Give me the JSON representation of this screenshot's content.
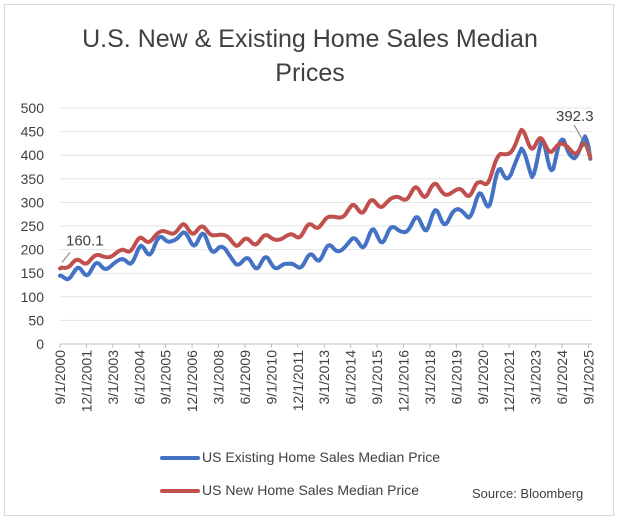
{
  "chart_data": {
    "type": "line",
    "title_line1": "U.S. New & Existing Home Sales Median",
    "title_line2": "Prices",
    "ylim": [
      0,
      500
    ],
    "y_ticks": [
      "500",
      "450",
      "400",
      "350",
      "300",
      "250",
      "200",
      "150",
      "100",
      "50",
      "0"
    ],
    "x_range": [
      2000.667,
      2025.833
    ],
    "x_ticks": [
      {
        "label": "9/1/2000",
        "x": 2000.667
      },
      {
        "label": "12/1/2001",
        "x": 2001.917
      },
      {
        "label": "3/1/2003",
        "x": 2003.167
      },
      {
        "label": "6/1/2004",
        "x": 2004.417
      },
      {
        "label": "9/1/2005",
        "x": 2005.667
      },
      {
        "label": "12/1/2006",
        "x": 2006.917
      },
      {
        "label": "3/1/2008",
        "x": 2008.167
      },
      {
        "label": "6/1/2009",
        "x": 2009.417
      },
      {
        "label": "9/1/2010",
        "x": 2010.667
      },
      {
        "label": "12/1/2011",
        "x": 2011.917
      },
      {
        "label": "3/1/2013",
        "x": 2013.167
      },
      {
        "label": "6/1/2014",
        "x": 2014.417
      },
      {
        "label": "9/1/2015",
        "x": 2015.667
      },
      {
        "label": "12/1/2016",
        "x": 2016.917
      },
      {
        "label": "3/1/2018",
        "x": 2018.167
      },
      {
        "label": "6/1/2019",
        "x": 2019.417
      },
      {
        "label": "9/1/2020",
        "x": 2020.667
      },
      {
        "label": "12/1/2021",
        "x": 2021.917
      },
      {
        "label": "3/1/2023",
        "x": 2023.167
      },
      {
        "label": "6/1/2024",
        "x": 2024.417
      },
      {
        "label": "9/1/2025",
        "x": 2025.667
      }
    ],
    "series": [
      {
        "name": "US Existing Home Sales Median Price",
        "color": "#4472c4",
        "anchors": [
          [
            2000.667,
            145
          ],
          [
            2001.0,
            143
          ],
          [
            2001.5,
            152
          ],
          [
            2002.0,
            157
          ],
          [
            2002.5,
            163
          ],
          [
            2003.0,
            167
          ],
          [
            2003.5,
            173
          ],
          [
            2004.0,
            180
          ],
          [
            2004.5,
            195
          ],
          [
            2005.0,
            205
          ],
          [
            2005.5,
            219
          ],
          [
            2006.0,
            225
          ],
          [
            2006.5,
            226
          ],
          [
            2007.0,
            223
          ],
          [
            2007.5,
            218
          ],
          [
            2008.0,
            205
          ],
          [
            2008.5,
            195
          ],
          [
            2009.0,
            175
          ],
          [
            2009.5,
            172
          ],
          [
            2010.0,
            172
          ],
          [
            2010.5,
            173
          ],
          [
            2011.0,
            167
          ],
          [
            2011.5,
            165
          ],
          [
            2012.0,
            170
          ],
          [
            2012.5,
            178
          ],
          [
            2013.0,
            192
          ],
          [
            2013.5,
            200
          ],
          [
            2014.0,
            205
          ],
          [
            2014.5,
            215
          ],
          [
            2015.0,
            218
          ],
          [
            2015.5,
            228
          ],
          [
            2016.0,
            230
          ],
          [
            2016.5,
            240
          ],
          [
            2017.0,
            245
          ],
          [
            2017.5,
            255
          ],
          [
            2018.0,
            258
          ],
          [
            2018.5,
            267
          ],
          [
            2019.0,
            268
          ],
          [
            2019.5,
            278
          ],
          [
            2020.0,
            280
          ],
          [
            2020.5,
            300
          ],
          [
            2021.0,
            315
          ],
          [
            2021.5,
            355
          ],
          [
            2022.0,
            370
          ],
          [
            2022.5,
            400
          ],
          [
            2023.0,
            375
          ],
          [
            2023.5,
            405
          ],
          [
            2024.0,
            392
          ],
          [
            2024.5,
            418
          ],
          [
            2025.0,
            405
          ],
          [
            2025.5,
            420
          ],
          [
            2025.833,
            392.3
          ]
        ],
        "seasonal_amplitude": [
          0.1,
          0.08
        ]
      },
      {
        "name": "US New Home Sales Median Price",
        "color": "#c0504d",
        "anchors": [
          [
            2000.667,
            160.1
          ],
          [
            2001.0,
            168
          ],
          [
            2001.5,
            172
          ],
          [
            2002.0,
            178
          ],
          [
            2002.5,
            185
          ],
          [
            2003.0,
            188
          ],
          [
            2003.5,
            192
          ],
          [
            2004.0,
            205
          ],
          [
            2004.5,
            218
          ],
          [
            2005.0,
            225
          ],
          [
            2005.5,
            235
          ],
          [
            2006.0,
            240
          ],
          [
            2006.5,
            245
          ],
          [
            2007.0,
            243
          ],
          [
            2007.5,
            240
          ],
          [
            2008.0,
            235
          ],
          [
            2008.5,
            225
          ],
          [
            2009.0,
            215
          ],
          [
            2009.5,
            215
          ],
          [
            2010.0,
            220
          ],
          [
            2010.5,
            225
          ],
          [
            2011.0,
            225
          ],
          [
            2011.5,
            225
          ],
          [
            2012.0,
            235
          ],
          [
            2012.5,
            245
          ],
          [
            2013.0,
            258
          ],
          [
            2013.5,
            265
          ],
          [
            2014.0,
            275
          ],
          [
            2014.5,
            285
          ],
          [
            2015.0,
            290
          ],
          [
            2015.5,
            295
          ],
          [
            2016.0,
            300
          ],
          [
            2016.5,
            305
          ],
          [
            2017.0,
            315
          ],
          [
            2017.5,
            320
          ],
          [
            2018.0,
            325
          ],
          [
            2018.5,
            330
          ],
          [
            2019.0,
            322
          ],
          [
            2019.5,
            320
          ],
          [
            2020.0,
            325
          ],
          [
            2020.5,
            330
          ],
          [
            2021.0,
            360
          ],
          [
            2021.5,
            395
          ],
          [
            2022.0,
            415
          ],
          [
            2022.5,
            440
          ],
          [
            2023.0,
            430
          ],
          [
            2023.5,
            418
          ],
          [
            2024.0,
            420
          ],
          [
            2024.5,
            415
          ],
          [
            2025.0,
            415
          ],
          [
            2025.5,
            410
          ],
          [
            2025.833,
            395
          ]
        ],
        "seasonal_amplitude": [
          0.06,
          0.04
        ]
      }
    ],
    "annotations": [
      {
        "label": "160.1",
        "series": 1,
        "at_x": 2000.667
      },
      {
        "label": "392.3",
        "series": 0,
        "at_x": 2025.833
      }
    ],
    "source": "Source: Bloomberg"
  }
}
